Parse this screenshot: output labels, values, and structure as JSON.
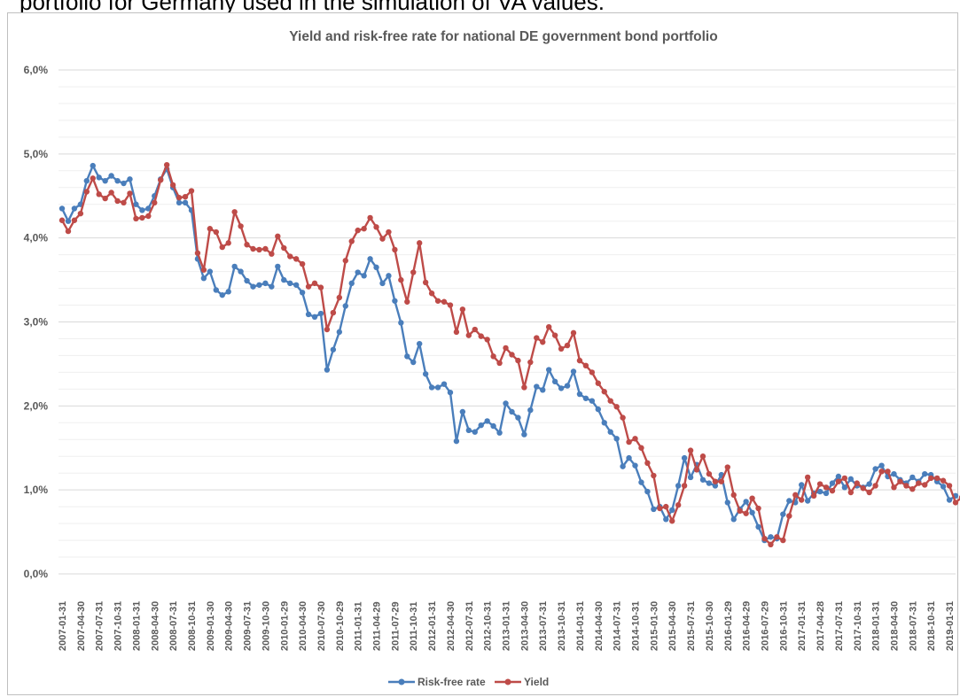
{
  "caption": "portfolio for Germany used in the simulation of VA values.",
  "chart_data": {
    "type": "line",
    "title": "Yield and risk-free rate for national DE government bond portfolio",
    "xlabel": "",
    "ylabel": "",
    "ylim": [
      0,
      6
    ],
    "yticks": [
      "0,0%",
      "1,0%",
      "2,0%",
      "3,0%",
      "4,0%",
      "5,0%",
      "6,0%"
    ],
    "grid": true,
    "legend": "bottom",
    "x_labels": [
      "2007-01-31",
      "2007-04-30",
      "2007-07-31",
      "2007-10-31",
      "2008-01-31",
      "2008-04-30",
      "2008-07-31",
      "2008-10-31",
      "2009-01-30",
      "2009-04-30",
      "2009-07-31",
      "2009-10-30",
      "2010-01-29",
      "2010-04-30",
      "2010-07-30",
      "2010-10-29",
      "2011-01-31",
      "2011-04-29",
      "2011-07-29",
      "2011-10-31",
      "2012-01-31",
      "2012-04-30",
      "2012-07-31",
      "2012-10-31",
      "2013-01-31",
      "2013-04-30",
      "2013-07-31",
      "2013-10-31",
      "2014-01-31",
      "2014-04-30",
      "2014-07-31",
      "2014-10-31",
      "2015-01-30",
      "2015-04-30",
      "2015-07-31",
      "2015-10-30",
      "2016-01-29",
      "2016-04-29",
      "2016-07-29",
      "2016-10-31",
      "2017-01-31",
      "2017-04-28",
      "2017-07-31",
      "2017-10-31",
      "2018-01-31",
      "2018-04-30",
      "2018-07-31",
      "2018-10-31",
      "2019-01-31"
    ],
    "series": [
      {
        "name": "Risk-free rate",
        "color": "#4a7ebb",
        "values": [
          4.35,
          4.2,
          4.35,
          4.4,
          4.68,
          4.86,
          4.72,
          4.68,
          4.74,
          4.68,
          4.65,
          4.7,
          4.4,
          4.33,
          4.35,
          4.5,
          4.7,
          4.82,
          4.6,
          4.42,
          4.42,
          4.33,
          3.75,
          3.52,
          3.6,
          3.38,
          3.32,
          3.36,
          3.66,
          3.6,
          3.49,
          3.42,
          3.44,
          3.46,
          3.42,
          3.66,
          3.5,
          3.46,
          3.44,
          3.35,
          3.09,
          3.06,
          3.1,
          2.43,
          2.67,
          2.88,
          3.19,
          3.46,
          3.59,
          3.55,
          3.75,
          3.65,
          3.46,
          3.55,
          3.25,
          2.99,
          2.59,
          2.52,
          2.74,
          2.38,
          2.22,
          2.22,
          2.26,
          2.16,
          1.58,
          1.93,
          1.71,
          1.69,
          1.77,
          1.82,
          1.76,
          1.68,
          2.03,
          1.93,
          1.86,
          1.66,
          1.95,
          2.23,
          2.19,
          2.43,
          2.29,
          2.21,
          2.24,
          2.41,
          2.14,
          2.09,
          2.06,
          1.96,
          1.8,
          1.69,
          1.61,
          1.28,
          1.38,
          1.29,
          1.09,
          0.98,
          0.77,
          0.8,
          0.65,
          0.76,
          1.05,
          1.38,
          1.15,
          1.3,
          1.12,
          1.08,
          1.05,
          1.18,
          0.85,
          0.65,
          0.77,
          0.86,
          0.73,
          0.56,
          0.4,
          0.44,
          0.42,
          0.71,
          0.87,
          0.85,
          1.06,
          0.87,
          0.96,
          0.98,
          0.96,
          1.08,
          1.16,
          1.03,
          1.13,
          1.05,
          1.03,
          1.07,
          1.25,
          1.29,
          1.16,
          1.19,
          1.12,
          1.08,
          1.15,
          1.1,
          1.19,
          1.18,
          1.1,
          1.04,
          0.88,
          0.93
        ],
        "note": ""
      },
      {
        "name": "Yield",
        "color": "#be4b48",
        "values": [
          4.21,
          4.08,
          4.21,
          4.29,
          4.55,
          4.71,
          4.52,
          4.47,
          4.54,
          4.44,
          4.42,
          4.53,
          4.23,
          4.24,
          4.26,
          4.42,
          4.69,
          4.87,
          4.63,
          4.48,
          4.49,
          4.56,
          3.82,
          3.62,
          4.11,
          4.07,
          3.89,
          3.94,
          4.31,
          4.14,
          3.92,
          3.87,
          3.86,
          3.87,
          3.81,
          4.02,
          3.88,
          3.78,
          3.75,
          3.69,
          3.42,
          3.46,
          3.41,
          2.91,
          3.11,
          3.29,
          3.73,
          3.96,
          4.09,
          4.11,
          4.24,
          4.13,
          3.99,
          4.07,
          3.86,
          3.5,
          3.24,
          3.59,
          3.94,
          3.47,
          3.34,
          3.25,
          3.24,
          3.2,
          2.88,
          3.15,
          2.84,
          2.91,
          2.83,
          2.79,
          2.59,
          2.51,
          2.69,
          2.61,
          2.54,
          2.22,
          2.52,
          2.81,
          2.76,
          2.94,
          2.84,
          2.68,
          2.72,
          2.87,
          2.54,
          2.48,
          2.4,
          2.27,
          2.17,
          2.06,
          1.99,
          1.86,
          1.57,
          1.61,
          1.5,
          1.32,
          1.17,
          0.78,
          0.8,
          0.63,
          0.82,
          1.05,
          1.47,
          1.24,
          1.4,
          1.19,
          1.1,
          1.1,
          1.27,
          0.94,
          0.75,
          0.72,
          0.9,
          0.78,
          0.42,
          0.35,
          0.44,
          0.4,
          0.69,
          0.94,
          0.88,
          1.15,
          0.93,
          1.07,
          1.03,
          0.99,
          1.1,
          1.14,
          0.97,
          1.08,
          1.02,
          0.97,
          1.05,
          1.22,
          1.22,
          1.03,
          1.1,
          1.05,
          1.01,
          1.08,
          1.06,
          1.14,
          1.14,
          1.11,
          1.05,
          0.85,
          0.91
        ]
      }
    ]
  }
}
